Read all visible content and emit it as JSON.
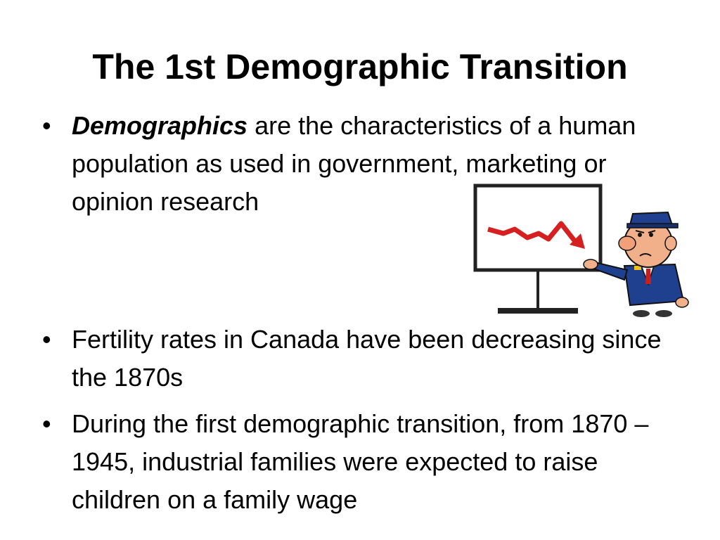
{
  "slide": {
    "title": "The 1st Demographic Transition",
    "bullet_symbol": "•",
    "bullets": [
      {
        "term": "Demographics",
        "text": " are the characteristics of a human population as used in government, marketing or opinion research"
      },
      {
        "text": "Fertility rates in Canada have been decreasing since the 1870s"
      },
      {
        "text": "During the first demographic transition, from 1870 – 1945, industrial families were expected to raise children on a family wage"
      }
    ],
    "illustration": {
      "icon": "man-pointing-at-declining-chart",
      "colors": {
        "arrow": "#d62020",
        "suit": "#1f3f8f",
        "skin": "#f2b08a",
        "tie": "#c62020"
      }
    }
  }
}
